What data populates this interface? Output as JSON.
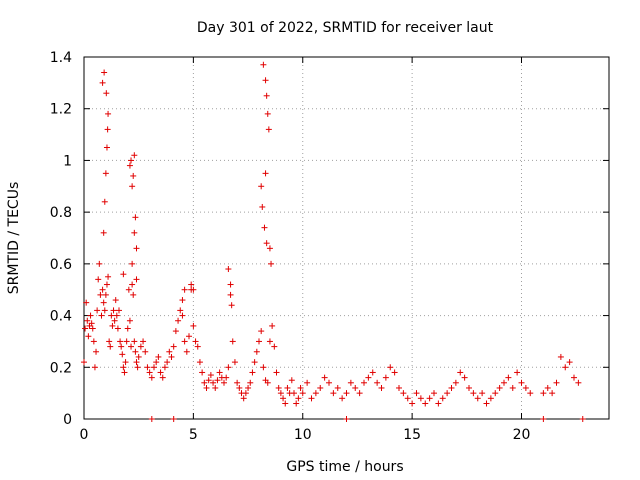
{
  "chart_data": {
    "type": "scatter",
    "title": "Day 301 of 2022, SRMTID for receiver laut",
    "xlabel": "GPS time / hours",
    "ylabel": "SRMTID / TECUs",
    "xlim": [
      0,
      24
    ],
    "ylim": [
      0,
      1.4
    ],
    "xticks": [
      0,
      5,
      10,
      15,
      20
    ],
    "xtick_labels": [
      "0",
      "5",
      "10",
      "15",
      "20"
    ],
    "yticks": [
      0,
      0.2,
      0.4,
      0.6,
      0.8,
      1,
      1.2,
      1.4
    ],
    "ytick_labels": [
      "0",
      "0.2",
      "0.4",
      "0.6",
      "0.8",
      "1",
      "1.2",
      "1.4"
    ],
    "grid": true,
    "marker": "plus",
    "color": "#e00000",
    "series": [
      {
        "name": "SRMTID",
        "x": [
          0.0,
          0.05,
          0.1,
          0.15,
          0.2,
          0.25,
          0.3,
          0.35,
          0.4,
          0.45,
          0.5,
          0.55,
          0.6,
          0.65,
          0.7,
          0.75,
          0.8,
          0.85,
          0.9,
          0.95,
          1.0,
          1.05,
          1.1,
          1.15,
          1.2,
          1.25,
          1.3,
          1.35,
          1.4,
          1.45,
          1.5,
          1.55,
          1.6,
          1.65,
          1.7,
          1.75,
          1.8,
          1.85,
          1.9,
          1.95,
          2.0,
          2.05,
          2.1,
          2.15,
          2.2,
          2.25,
          2.3,
          2.35,
          2.4,
          2.45,
          2.5,
          2.6,
          2.7,
          2.8,
          2.9,
          3.0,
          3.1,
          3.2,
          3.3,
          3.4,
          3.5,
          3.6,
          3.7,
          3.8,
          3.9,
          4.0,
          4.1,
          4.2,
          4.3,
          4.4,
          4.5,
          4.6,
          4.7,
          4.8,
          4.9,
          5.0,
          5.1,
          5.2,
          5.3,
          5.4,
          5.5,
          5.6,
          5.7,
          5.8,
          5.9,
          6.0,
          6.1,
          6.2,
          6.3,
          6.4,
          6.5,
          6.6,
          6.7,
          6.8,
          6.9,
          7.0,
          7.1,
          7.2,
          7.3,
          7.4,
          7.5,
          7.6,
          7.7,
          7.8,
          7.9,
          8.0,
          8.1,
          8.2,
          8.3,
          8.4,
          8.5,
          8.6,
          8.7,
          8.8,
          8.9,
          9.0,
          9.1,
          9.2,
          9.3,
          9.4,
          9.5,
          9.6,
          9.7,
          9.8,
          9.9,
          10.0,
          10.2,
          10.4,
          10.6,
          10.8,
          11.0,
          11.2,
          11.4,
          11.6,
          11.8,
          12.0,
          12.2,
          12.4,
          12.6,
          12.8,
          13.0,
          13.2,
          13.4,
          13.6,
          13.8,
          14.0,
          14.2,
          14.4,
          14.6,
          14.8,
          15.0,
          15.2,
          15.4,
          15.6,
          15.8,
          16.0,
          16.2,
          16.4,
          16.6,
          16.8,
          17.0,
          17.2,
          17.4,
          17.6,
          17.8,
          18.0,
          18.2,
          18.4,
          18.6,
          18.8,
          19.0,
          19.2,
          19.4,
          19.6,
          19.8,
          20.0,
          20.2,
          20.4,
          21.0,
          21.2,
          21.4,
          21.6,
          21.8,
          22.0,
          22.2,
          22.4,
          22.6,
          0.9,
          0.95,
          1.0,
          1.05,
          1.1,
          0.85,
          0.92,
          1.02,
          1.08,
          2.1,
          2.2,
          2.25,
          2.3,
          2.15,
          2.35,
          2.2,
          8.2,
          8.3,
          8.35,
          8.4,
          8.45,
          8.3,
          8.15,
          8.25,
          8.35,
          8.1,
          8.5,
          8.55,
          6.6,
          6.7,
          6.75,
          4.5,
          4.6,
          4.9,
          5.0,
          1.8,
          2.3,
          2.4,
          2.4,
          3.1,
          4.1,
          12.0,
          21.0,
          22.8
        ],
        "y": [
          0.22,
          0.35,
          0.45,
          0.38,
          0.32,
          0.36,
          0.4,
          0.37,
          0.35,
          0.3,
          0.2,
          0.26,
          0.42,
          0.54,
          0.6,
          0.48,
          0.4,
          0.5,
          0.45,
          0.42,
          0.48,
          0.52,
          0.55,
          0.3,
          0.28,
          0.4,
          0.36,
          0.42,
          0.38,
          0.46,
          0.4,
          0.35,
          0.42,
          0.3,
          0.28,
          0.25,
          0.2,
          0.18,
          0.22,
          0.3,
          0.35,
          0.5,
          0.38,
          0.28,
          0.52,
          0.48,
          0.3,
          0.26,
          0.22,
          0.2,
          0.24,
          0.28,
          0.3,
          0.26,
          0.2,
          0.18,
          0.16,
          0.2,
          0.22,
          0.24,
          0.18,
          0.16,
          0.2,
          0.22,
          0.26,
          0.24,
          0.28,
          0.34,
          0.38,
          0.42,
          0.4,
          0.3,
          0.26,
          0.32,
          0.5,
          0.36,
          0.3,
          0.28,
          0.22,
          0.18,
          0.14,
          0.12,
          0.15,
          0.17,
          0.14,
          0.12,
          0.15,
          0.18,
          0.16,
          0.14,
          0.16,
          0.2,
          0.48,
          0.3,
          0.22,
          0.14,
          0.12,
          0.1,
          0.08,
          0.1,
          0.12,
          0.14,
          0.18,
          0.22,
          0.26,
          0.3,
          0.34,
          0.2,
          0.15,
          0.14,
          0.3,
          0.36,
          0.28,
          0.18,
          0.12,
          0.1,
          0.08,
          0.06,
          0.12,
          0.1,
          0.15,
          0.1,
          0.06,
          0.08,
          0.12,
          0.1,
          0.14,
          0.08,
          0.1,
          0.12,
          0.16,
          0.14,
          0.1,
          0.12,
          0.08,
          0.1,
          0.14,
          0.12,
          0.1,
          0.14,
          0.16,
          0.18,
          0.14,
          0.12,
          0.16,
          0.2,
          0.18,
          0.12,
          0.1,
          0.08,
          0.06,
          0.1,
          0.08,
          0.06,
          0.08,
          0.1,
          0.06,
          0.08,
          0.1,
          0.12,
          0.14,
          0.18,
          0.16,
          0.12,
          0.1,
          0.08,
          0.1,
          0.06,
          0.08,
          0.1,
          0.12,
          0.14,
          0.16,
          0.12,
          0.18,
          0.14,
          0.12,
          0.1,
          0.1,
          0.12,
          0.1,
          0.14,
          0.24,
          0.2,
          0.22,
          0.16,
          0.14,
          0.72,
          0.84,
          0.95,
          1.05,
          1.18,
          1.3,
          1.34,
          1.26,
          1.12,
          0.98,
          0.9,
          0.94,
          1.02,
          1.0,
          0.78,
          0.6,
          1.37,
          1.31,
          1.25,
          1.18,
          1.12,
          0.95,
          0.82,
          0.74,
          0.68,
          0.9,
          0.66,
          0.6,
          0.58,
          0.52,
          0.44,
          0.46,
          0.5,
          0.52,
          0.5,
          0.56,
          0.72,
          0.66,
          0.54,
          0.0,
          0.0,
          0.0,
          0.0,
          0.0
        ]
      }
    ]
  }
}
